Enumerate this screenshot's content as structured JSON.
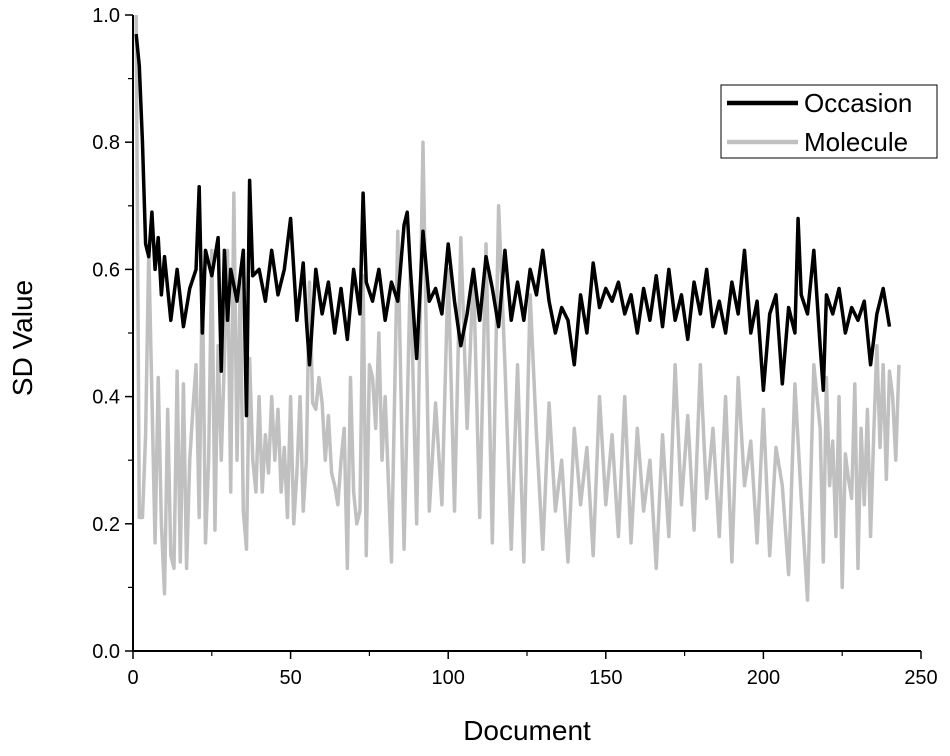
{
  "chart_data": {
    "type": "line",
    "title": "",
    "xlabel": "Document",
    "ylabel": "SD Value",
    "xlim": [
      0,
      250
    ],
    "ylim": [
      0.0,
      1.0
    ],
    "xticks": [
      0,
      50,
      100,
      150,
      200,
      250
    ],
    "xtick_labels": [
      "0",
      "50",
      "100",
      "150",
      "200",
      "250"
    ],
    "yticks": [
      0.0,
      0.2,
      0.4,
      0.6,
      0.8,
      1.0
    ],
    "ytick_labels": [
      "0.0",
      "0.2",
      "0.4",
      "0.6",
      "0.8",
      "1.0"
    ],
    "grid": false,
    "legend_position": "top-right",
    "series": [
      {
        "name": "Occasion",
        "color": "#000000",
        "x": [
          1,
          2,
          3,
          4,
          5,
          6,
          7,
          8,
          9,
          10,
          12,
          14,
          16,
          18,
          20,
          21,
          22,
          23,
          25,
          27,
          28,
          29,
          30,
          31,
          33,
          35,
          36,
          37,
          38,
          40,
          42,
          44,
          46,
          48,
          50,
          52,
          54,
          55,
          56,
          58,
          60,
          62,
          64,
          66,
          68,
          70,
          72,
          73,
          74,
          76,
          78,
          80,
          82,
          84,
          86,
          87,
          88,
          90,
          92,
          94,
          96,
          98,
          100,
          102,
          104,
          106,
          108,
          110,
          112,
          114,
          116,
          118,
          120,
          122,
          124,
          126,
          128,
          130,
          132,
          134,
          136,
          138,
          140,
          142,
          144,
          146,
          148,
          150,
          152,
          154,
          156,
          158,
          160,
          162,
          164,
          166,
          168,
          170,
          172,
          174,
          176,
          178,
          180,
          182,
          184,
          186,
          188,
          190,
          192,
          194,
          196,
          198,
          200,
          202,
          204,
          206,
          208,
          210,
          211,
          212,
          214,
          216,
          218,
          219,
          220,
          222,
          224,
          226,
          228,
          230,
          232,
          234,
          236,
          238,
          240
        ],
        "values": [
          0.97,
          0.92,
          0.8,
          0.64,
          0.62,
          0.69,
          0.6,
          0.65,
          0.56,
          0.62,
          0.52,
          0.6,
          0.51,
          0.57,
          0.6,
          0.73,
          0.5,
          0.63,
          0.59,
          0.65,
          0.44,
          0.63,
          0.52,
          0.6,
          0.55,
          0.63,
          0.37,
          0.74,
          0.59,
          0.6,
          0.55,
          0.63,
          0.56,
          0.6,
          0.68,
          0.52,
          0.61,
          0.52,
          0.45,
          0.6,
          0.53,
          0.58,
          0.5,
          0.57,
          0.49,
          0.6,
          0.53,
          0.72,
          0.58,
          0.55,
          0.6,
          0.52,
          0.58,
          0.55,
          0.67,
          0.69,
          0.6,
          0.46,
          0.66,
          0.55,
          0.57,
          0.53,
          0.64,
          0.55,
          0.48,
          0.53,
          0.6,
          0.52,
          0.62,
          0.57,
          0.51,
          0.63,
          0.52,
          0.58,
          0.52,
          0.6,
          0.56,
          0.63,
          0.55,
          0.5,
          0.54,
          0.52,
          0.45,
          0.56,
          0.5,
          0.61,
          0.54,
          0.57,
          0.55,
          0.58,
          0.53,
          0.56,
          0.5,
          0.57,
          0.52,
          0.59,
          0.51,
          0.6,
          0.52,
          0.56,
          0.49,
          0.58,
          0.53,
          0.6,
          0.51,
          0.55,
          0.5,
          0.58,
          0.53,
          0.63,
          0.5,
          0.55,
          0.41,
          0.53,
          0.56,
          0.42,
          0.54,
          0.5,
          0.68,
          0.56,
          0.53,
          0.63,
          0.48,
          0.41,
          0.56,
          0.53,
          0.57,
          0.5,
          0.54,
          0.52,
          0.55,
          0.45,
          0.53,
          0.57,
          0.51
        ]
      },
      {
        "name": "Molecule",
        "color": "#c0c0c0",
        "x": [
          1,
          2,
          3,
          4,
          5,
          6,
          7,
          8,
          9,
          10,
          11,
          12,
          13,
          14,
          15,
          16,
          17,
          18,
          19,
          20,
          21,
          22,
          23,
          24,
          25,
          26,
          27,
          28,
          29,
          30,
          31,
          32,
          33,
          34,
          35,
          36,
          37,
          38,
          39,
          40,
          41,
          42,
          43,
          44,
          45,
          46,
          47,
          48,
          49,
          50,
          51,
          52,
          53,
          54,
          55,
          56,
          57,
          58,
          59,
          60,
          61,
          62,
          63,
          64,
          65,
          66,
          67,
          68,
          69,
          70,
          71,
          72,
          73,
          74,
          75,
          76,
          77,
          78,
          79,
          80,
          82,
          84,
          86,
          88,
          90,
          92,
          94,
          96,
          98,
          100,
          102,
          104,
          106,
          108,
          110,
          112,
          114,
          116,
          118,
          120,
          122,
          124,
          126,
          128,
          130,
          132,
          134,
          136,
          138,
          140,
          142,
          144,
          146,
          148,
          150,
          152,
          154,
          156,
          158,
          160,
          162,
          164,
          166,
          168,
          170,
          172,
          174,
          176,
          178,
          180,
          182,
          184,
          186,
          188,
          190,
          192,
          194,
          196,
          198,
          200,
          202,
          204,
          206,
          208,
          210,
          212,
          214,
          216,
          218,
          219,
          220,
          221,
          222,
          223,
          224,
          225,
          226,
          227,
          228,
          229,
          230,
          231,
          232,
          233,
          234,
          235,
          236,
          237,
          238,
          239,
          240,
          241,
          242,
          243
        ],
        "values": [
          1.0,
          0.21,
          0.21,
          0.34,
          0.63,
          0.4,
          0.17,
          0.43,
          0.2,
          0.09,
          0.38,
          0.15,
          0.13,
          0.44,
          0.14,
          0.42,
          0.13,
          0.3,
          0.38,
          0.45,
          0.21,
          0.6,
          0.17,
          0.3,
          0.63,
          0.19,
          0.48,
          0.3,
          0.46,
          0.63,
          0.25,
          0.72,
          0.3,
          0.58,
          0.22,
          0.16,
          0.46,
          0.3,
          0.25,
          0.4,
          0.25,
          0.34,
          0.28,
          0.4,
          0.3,
          0.38,
          0.25,
          0.32,
          0.21,
          0.4,
          0.2,
          0.28,
          0.4,
          0.22,
          0.3,
          0.58,
          0.39,
          0.38,
          0.43,
          0.39,
          0.3,
          0.37,
          0.28,
          0.26,
          0.23,
          0.3,
          0.35,
          0.13,
          0.43,
          0.25,
          0.2,
          0.22,
          0.59,
          0.15,
          0.45,
          0.43,
          0.35,
          0.5,
          0.3,
          0.4,
          0.14,
          0.66,
          0.16,
          0.6,
          0.2,
          0.8,
          0.22,
          0.39,
          0.23,
          0.6,
          0.22,
          0.65,
          0.35,
          0.6,
          0.21,
          0.64,
          0.17,
          0.7,
          0.45,
          0.16,
          0.45,
          0.14,
          0.56,
          0.34,
          0.16,
          0.39,
          0.22,
          0.3,
          0.14,
          0.35,
          0.23,
          0.32,
          0.15,
          0.4,
          0.23,
          0.34,
          0.18,
          0.4,
          0.17,
          0.35,
          0.22,
          0.3,
          0.13,
          0.34,
          0.18,
          0.45,
          0.23,
          0.37,
          0.19,
          0.45,
          0.24,
          0.35,
          0.18,
          0.4,
          0.14,
          0.43,
          0.26,
          0.33,
          0.17,
          0.38,
          0.15,
          0.32,
          0.26,
          0.12,
          0.42,
          0.24,
          0.08,
          0.45,
          0.35,
          0.14,
          0.43,
          0.26,
          0.33,
          0.18,
          0.4,
          0.1,
          0.31,
          0.27,
          0.24,
          0.42,
          0.13,
          0.35,
          0.23,
          0.38,
          0.18,
          0.34,
          0.48,
          0.32,
          0.45,
          0.27,
          0.44,
          0.4,
          0.3,
          0.45
        ]
      }
    ]
  }
}
